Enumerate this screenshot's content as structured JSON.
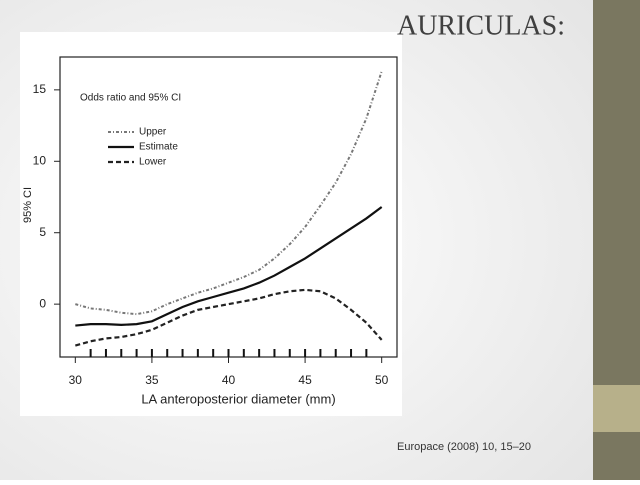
{
  "slide": {
    "title": "AURICULAS:",
    "citation": "Europace (2008) 10, 15–20"
  },
  "chart_data": {
    "type": "line",
    "legend_title": "Odds ratio and 95% CI",
    "xlabel": "LA anteroposterior diameter (mm)",
    "ylabel": "95% CI",
    "x": [
      30,
      31,
      32,
      33,
      34,
      35,
      36,
      37,
      38,
      39,
      40,
      41,
      42,
      43,
      44,
      45,
      46,
      47,
      48,
      49,
      50
    ],
    "series": [
      {
        "name": "Upper",
        "color": "#777777",
        "style": "dashdot",
        "values": [
          0,
          -0.3,
          -0.4,
          -0.6,
          -0.7,
          -0.5,
          0,
          0.4,
          0.8,
          1.1,
          1.5,
          1.9,
          2.4,
          3.2,
          4.2,
          5.4,
          6.9,
          8.5,
          10.5,
          13,
          16.3
        ]
      },
      {
        "name": "Estimate",
        "color": "#111111",
        "style": "solid",
        "values": [
          -1.5,
          -1.4,
          -1.4,
          -1.45,
          -1.4,
          -1.2,
          -0.7,
          -0.2,
          0.2,
          0.5,
          0.8,
          1.1,
          1.5,
          2,
          2.6,
          3.2,
          3.9,
          4.6,
          5.3,
          6,
          6.8
        ]
      },
      {
        "name": "Lower",
        "color": "#222222",
        "style": "dashed",
        "values": [
          -2.9,
          -2.6,
          -2.4,
          -2.3,
          -2.1,
          -1.8,
          -1.3,
          -0.8,
          -0.4,
          -0.2,
          0,
          0.2,
          0.4,
          0.7,
          0.9,
          1.0,
          0.9,
          0.4,
          -0.4,
          -1.3,
          -2.5
        ]
      }
    ],
    "rug": [
      31,
      32,
      33,
      34,
      35,
      36,
      37,
      38,
      39,
      40,
      41,
      42,
      43,
      44,
      45,
      46,
      47,
      48,
      49
    ],
    "xlim": [
      29,
      51
    ],
    "ylim": [
      -3.7,
      17.3
    ],
    "xticks": [
      30,
      35,
      40,
      45,
      50
    ],
    "yticks": [
      0,
      5,
      10,
      15
    ]
  }
}
